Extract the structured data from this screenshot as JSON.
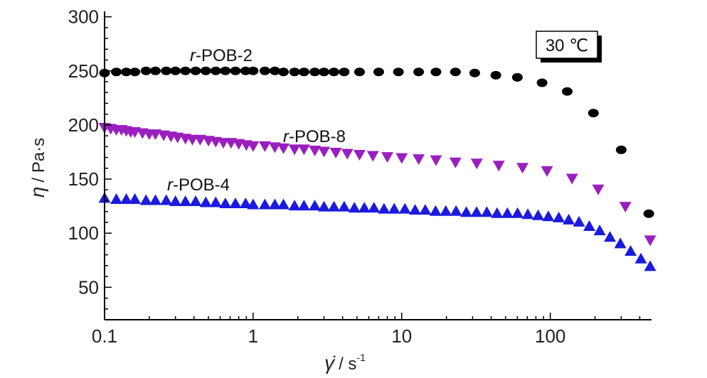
{
  "chart_data": {
    "type": "scatter",
    "x_scale": "log",
    "xlim": [
      0.1,
      480
    ],
    "ylim": [
      20,
      305
    ],
    "x_ticks": [
      0.1,
      1,
      10,
      100
    ],
    "x_tick_labels": [
      "0.1",
      "1",
      "10",
      "100"
    ],
    "y_ticks": [
      50,
      100,
      150,
      200,
      250,
      300
    ],
    "y_tick_labels": [
      "50",
      "100",
      "150",
      "200",
      "250",
      "300"
    ],
    "ylabel_symbol": "η",
    "ylabel_unit": "/ Pa·s",
    "xlabel_symbol": "γ̇",
    "xlabel_unit": "/ s",
    "xlabel_exponent": "-1",
    "annotation": "30 ℃",
    "grid": false,
    "series": [
      {
        "name": "r-POB-2",
        "name_prefix": "r",
        "name_rest": "-POB-2",
        "marker": "circle",
        "color": "#000000",
        "x": [
          0.1,
          0.12,
          0.14,
          0.16,
          0.19,
          0.22,
          0.26,
          0.3,
          0.35,
          0.41,
          0.48,
          0.56,
          0.65,
          0.76,
          0.89,
          1.0,
          1.2,
          1.4,
          1.6,
          1.9,
          2.2,
          2.6,
          3.0,
          3.5,
          4.1,
          5.2,
          7.0,
          9.5,
          13,
          17,
          23,
          31,
          43,
          60,
          88,
          130,
          195,
          300,
          460
        ],
        "y": [
          248,
          249,
          249,
          249,
          250,
          250,
          250,
          250,
          250,
          250,
          250,
          250,
          250,
          250,
          250,
          250,
          250,
          250,
          249,
          249,
          249,
          249,
          249,
          249,
          249,
          249,
          249,
          249,
          249,
          249,
          249,
          248,
          246,
          244,
          239,
          231,
          211,
          177,
          118
        ]
      },
      {
        "name": "r-POB-8",
        "name_prefix": "r",
        "name_rest": "-POB-8",
        "marker": "triangle-down",
        "color": "#9a1fbf",
        "x": [
          0.1,
          0.11,
          0.12,
          0.13,
          0.14,
          0.15,
          0.16,
          0.18,
          0.2,
          0.22,
          0.25,
          0.28,
          0.31,
          0.35,
          0.39,
          0.44,
          0.5,
          0.56,
          0.63,
          0.71,
          0.8,
          0.9,
          1.0,
          1.2,
          1.4,
          1.6,
          1.9,
          2.2,
          2.6,
          3.0,
          3.6,
          4.3,
          5.2,
          6.4,
          8.0,
          10,
          13,
          17,
          23,
          32,
          45,
          65,
          95,
          140,
          210,
          320,
          470
        ],
        "y": [
          197,
          196,
          195,
          195,
          194,
          193,
          193,
          192,
          191,
          191,
          190,
          189,
          188,
          187,
          186,
          186,
          185,
          184,
          183,
          183,
          182,
          181,
          180,
          180,
          179,
          178,
          177,
          177,
          176,
          175,
          174,
          173,
          172,
          171,
          170,
          169,
          168,
          167,
          165,
          164,
          162,
          160,
          157,
          150,
          140,
          124,
          93
        ]
      },
      {
        "name": "r-POB-4",
        "name_prefix": "r",
        "name_rest": "-POB-4",
        "marker": "triangle-up",
        "color": "#1a1ae0",
        "x": [
          0.1,
          0.12,
          0.14,
          0.16,
          0.19,
          0.22,
          0.26,
          0.3,
          0.35,
          0.41,
          0.48,
          0.56,
          0.65,
          0.76,
          0.89,
          1.0,
          1.2,
          1.4,
          1.6,
          1.9,
          2.2,
          2.6,
          3.0,
          3.5,
          4.1,
          4.8,
          5.6,
          6.5,
          7.6,
          8.9,
          10.5,
          12.3,
          14.4,
          16.9,
          19.8,
          23.2,
          27.2,
          31.9,
          37.4,
          43.8,
          51.4,
          60.2,
          70.6,
          82.8,
          97,
          114,
          133,
          156,
          183,
          215,
          252,
          296,
          347,
          407,
          470
        ],
        "y": [
          133,
          132,
          132,
          132,
          131,
          131,
          131,
          130,
          130,
          130,
          129,
          129,
          128,
          128,
          128,
          127,
          127,
          127,
          127,
          126,
          126,
          126,
          125,
          125,
          125,
          124,
          124,
          124,
          123,
          123,
          123,
          122,
          122,
          121,
          121,
          121,
          120,
          120,
          120,
          119,
          119,
          119,
          118,
          117,
          116,
          115,
          113,
          111,
          107,
          103,
          97,
          91,
          84,
          77,
          70
        ]
      }
    ]
  }
}
